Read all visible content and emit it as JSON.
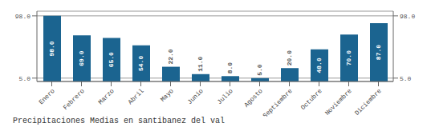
{
  "chart_data": {
    "type": "bar",
    "title": "Precipitaciones Medias en santibanez del val",
    "categories": [
      "Enero",
      "Febrero",
      "Marzo",
      "Abril",
      "Mayo",
      "Junio",
      "Julio",
      "Agosto",
      "Septiembre",
      "Octubre",
      "Noviembre",
      "Diciembre"
    ],
    "values": [
      98.0,
      69.0,
      65.0,
      54.0,
      22.0,
      11.0,
      8.0,
      5.0,
      20.0,
      48.0,
      70.0,
      87.0
    ],
    "value_labels": [
      "98.0",
      "69.0",
      "65.0",
      "54.0",
      "22.0",
      "11.0",
      "8.0",
      "5.0",
      "20.0",
      "48.0",
      "70.0",
      "87.0"
    ],
    "data_labels": true,
    "color": "#1b6490",
    "ylim": [
      0,
      105
    ],
    "yticks": [
      {
        "value": 5,
        "label": "5.0"
      },
      {
        "value": 98,
        "label": "98.0"
      }
    ],
    "grid": true
  }
}
